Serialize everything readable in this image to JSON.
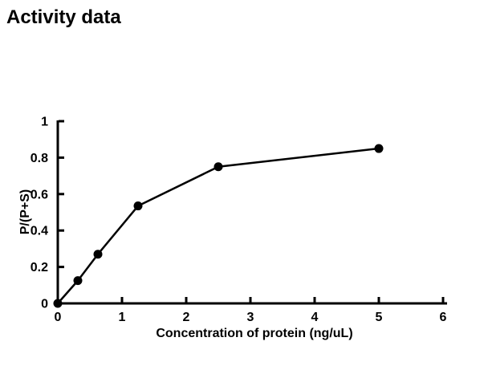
{
  "title": "Activity data",
  "chart_data": {
    "type": "line",
    "title": "Activity data",
    "xlabel": "Concentration of protein (ng/uL)",
    "ylabel": "P/(P+S)",
    "x": [
      0,
      0.3125,
      0.625,
      1.25,
      2.5,
      5
    ],
    "y": [
      0,
      0.125,
      0.27,
      0.535,
      0.75,
      0.85
    ],
    "xlim": [
      0,
      6
    ],
    "ylim": [
      0,
      1
    ],
    "x_ticks": [
      0,
      1,
      2,
      3,
      4,
      5,
      6
    ],
    "y_ticks": [
      0,
      0.2,
      0.4,
      0.6,
      0.8,
      1
    ],
    "grid": false,
    "legend": false,
    "marker": "filled-circle",
    "line_color": "#000000",
    "marker_color": "#000000",
    "text_color": "#000000",
    "background_color": "#ffffff"
  }
}
